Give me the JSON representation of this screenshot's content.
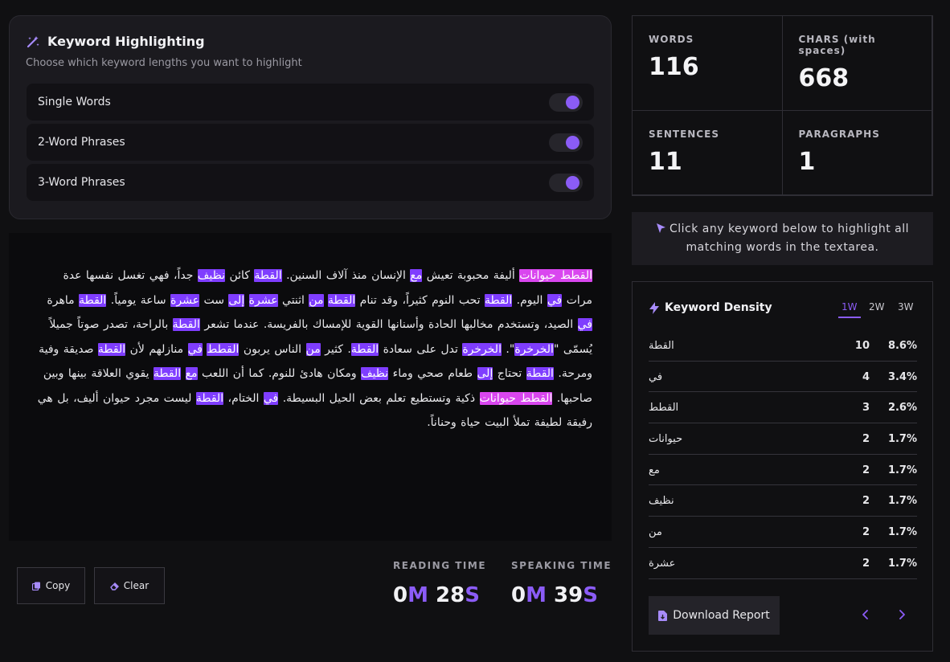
{
  "keyword_panel": {
    "title": "Keyword Highlighting",
    "subtitle": "Choose which keyword lengths you want to highlight",
    "options": [
      {
        "label": "Single Words",
        "enabled": true
      },
      {
        "label": "2-Word Phrases",
        "enabled": true
      },
      {
        "label": "3-Word Phrases",
        "enabled": true
      }
    ]
  },
  "text_segments": [
    {
      "t": "القطط حيوانات",
      "h": "p"
    },
    {
      "t": " أليفة محبوبة تعيش "
    },
    {
      "t": "مع",
      "h": "w"
    },
    {
      "t": " الإنسان منذ آلاف السنين. "
    },
    {
      "t": "القطة",
      "h": "w"
    },
    {
      "t": " كائن "
    },
    {
      "t": "نظيف",
      "h": "w"
    },
    {
      "t": " جداً، فهي تغسل نفسها عدة مرات "
    },
    {
      "t": "في",
      "h": "w"
    },
    {
      "t": " اليوم. "
    },
    {
      "t": "القطة",
      "h": "w"
    },
    {
      "t": " تحب النوم كثيراً، وقد تنام "
    },
    {
      "t": "القطة",
      "h": "w"
    },
    {
      "t": " "
    },
    {
      "t": "من",
      "h": "w"
    },
    {
      "t": " اثنتي "
    },
    {
      "t": "عشرة",
      "h": "w"
    },
    {
      "t": " "
    },
    {
      "t": "إلى",
      "h": "w"
    },
    {
      "t": " ست "
    },
    {
      "t": "عشرة",
      "h": "w"
    },
    {
      "t": " ساعة يومياً. "
    },
    {
      "t": "القطة",
      "h": "w"
    },
    {
      "t": " ماهرة "
    },
    {
      "t": "في",
      "h": "w"
    },
    {
      "t": " الصيد، وتستخدم مخالبها الحادة وأسنانها القوية للإمساك بالفريسة. عندما تشعر "
    },
    {
      "t": "القطة",
      "h": "w"
    },
    {
      "t": " بالراحة، تصدر صوتاً جميلاً يُسمّى \""
    },
    {
      "t": "الخرخرة",
      "h": "w"
    },
    {
      "t": "\". "
    },
    {
      "t": "الخرخرة",
      "h": "w"
    },
    {
      "t": " تدل على سعادة "
    },
    {
      "t": "القطة",
      "h": "w"
    },
    {
      "t": ". كثير "
    },
    {
      "t": "من",
      "h": "w"
    },
    {
      "t": " الناس يربون "
    },
    {
      "t": "القطط",
      "h": "w"
    },
    {
      "t": " "
    },
    {
      "t": "في",
      "h": "w"
    },
    {
      "t": " منازلهم لأن "
    },
    {
      "t": "القطة",
      "h": "w"
    },
    {
      "t": " صديقة وفية ومرحة. "
    },
    {
      "t": "القطة",
      "h": "w"
    },
    {
      "t": " تحتاج "
    },
    {
      "t": "إلى",
      "h": "w"
    },
    {
      "t": " طعام صحي وماء "
    },
    {
      "t": "نظيف",
      "h": "w"
    },
    {
      "t": " ومكان هادئ للنوم. كما أن اللعب "
    },
    {
      "t": "مع",
      "h": "w"
    },
    {
      "t": " "
    },
    {
      "t": "القطة",
      "h": "w"
    },
    {
      "t": " يقوي العلاقة بينها وبين صاحبها. "
    },
    {
      "t": "القطط حيوانات",
      "h": "p"
    },
    {
      "t": " ذكية وتستطيع تعلم بعض الحيل البسيطة. "
    },
    {
      "t": "في",
      "h": "w"
    },
    {
      "t": " الختام، "
    },
    {
      "t": "القطة",
      "h": "w"
    },
    {
      "t": " ليست مجرد حيوان أليف، بل هي رفيقة لطيفة تملأ البيت حياة وحناناً."
    }
  ],
  "actions": {
    "copy": "Copy",
    "clear": "Clear"
  },
  "timing": {
    "reading_label": "READING TIME",
    "reading": {
      "m": "0",
      "mu": "M",
      "s": "28",
      "su": "S"
    },
    "speaking_label": "SPEAKING TIME",
    "speaking": {
      "m": "0",
      "mu": "M",
      "s": "39",
      "su": "S"
    }
  },
  "stats": [
    {
      "label": "WORDS",
      "value": "116"
    },
    {
      "label": "CHARS (with spaces)",
      "value": "668"
    },
    {
      "label": "SENTENCES",
      "value": "11"
    },
    {
      "label": "PARAGRAPHS",
      "value": "1"
    }
  ],
  "hint": "Click any keyword below to highlight all matching words in the textarea.",
  "density": {
    "title": "Keyword Density",
    "tabs": [
      "1W",
      "2W",
      "3W"
    ],
    "active_tab": "1W",
    "rows": [
      {
        "word": "القطة",
        "count": "10",
        "pct": "8.6%"
      },
      {
        "word": "في",
        "count": "4",
        "pct": "3.4%"
      },
      {
        "word": "القطط",
        "count": "3",
        "pct": "2.6%"
      },
      {
        "word": "حيوانات",
        "count": "2",
        "pct": "1.7%"
      },
      {
        "word": "مع",
        "count": "2",
        "pct": "1.7%"
      },
      {
        "word": "نظيف",
        "count": "2",
        "pct": "1.7%"
      },
      {
        "word": "من",
        "count": "2",
        "pct": "1.7%"
      },
      {
        "word": "عشرة",
        "count": "2",
        "pct": "1.7%"
      }
    ],
    "download": "Download Report"
  },
  "colors": {
    "accent": "#8b5cf6",
    "word_highlight": "#7f3dff",
    "phrase_highlight": "#d946ef"
  },
  "icons": [
    "magic-wand-icon",
    "copy-icon",
    "eraser-icon",
    "pointer-icon",
    "lightning-icon",
    "file-download-icon",
    "chevron-left-icon",
    "chevron-right-icon"
  ]
}
